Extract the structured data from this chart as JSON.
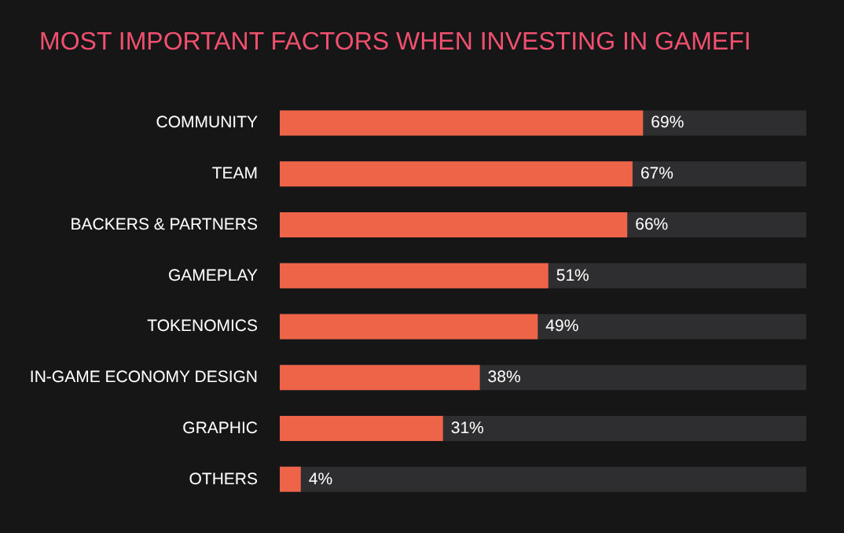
{
  "chart_data": {
    "type": "bar",
    "orientation": "horizontal",
    "title": "MOST IMPORTANT FACTORS WHEN INVESTING IN GAMEFI",
    "categories": [
      "COMMUNITY",
      "TEAM",
      "BACKERS & PARTNERS",
      "GAMEPLAY",
      "TOKENOMICS",
      "IN-GAME ECONOMY DESIGN",
      "GRAPHIC",
      "OTHERS"
    ],
    "values": [
      69,
      67,
      66,
      51,
      49,
      38,
      31,
      4
    ],
    "value_labels": [
      "69%",
      "67%",
      "66%",
      "51%",
      "49%",
      "38%",
      "31%",
      "4%"
    ],
    "color": "#ee6448",
    "xlim": [
      0,
      100
    ],
    "tick_labels": "y",
    "grid": false
  }
}
